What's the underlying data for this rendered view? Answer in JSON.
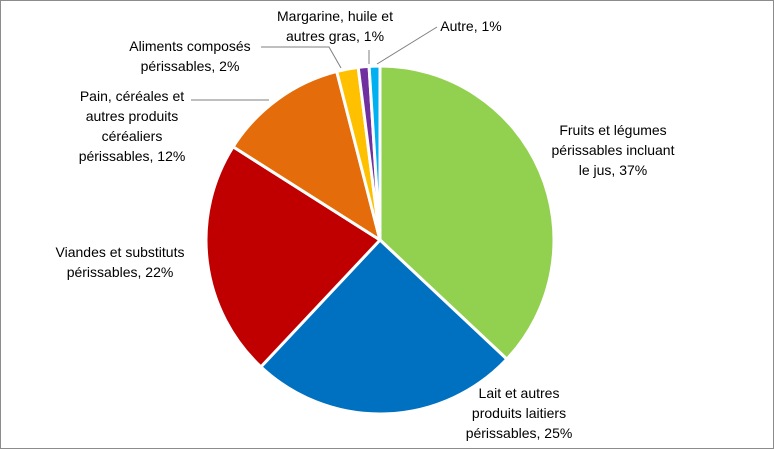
{
  "chart_data": {
    "type": "pie",
    "title": "",
    "slices": [
      {
        "label": [
          "Fruits et légumes",
          "périssables incluant",
          "le jus, 37%"
        ],
        "value": 37,
        "color": "#92d050"
      },
      {
        "label": [
          "Lait et autres",
          "produits laitiers",
          "périssables, 25%"
        ],
        "value": 25,
        "color": "#0070c0"
      },
      {
        "label": [
          "Viandes et substituts",
          "périssables, 22%"
        ],
        "value": 22,
        "color": "#c00000"
      },
      {
        "label": [
          "Pain, céréales et",
          "autres produits",
          "céréaliers",
          "périssables, 12%"
        ],
        "value": 12,
        "color": "#e46c0a"
      },
      {
        "label": [
          "Aliments composés",
          "périssables, 2%"
        ],
        "value": 2,
        "color": "#ffc000"
      },
      {
        "label": [
          "Margarine, huile et",
          "autres gras, 1%"
        ],
        "value": 1,
        "color": "#7030a0"
      },
      {
        "label": [
          "Autre, 1%"
        ],
        "value": 1,
        "color": "#00b0f0"
      }
    ],
    "legend": "none",
    "data_labels": "outside"
  }
}
